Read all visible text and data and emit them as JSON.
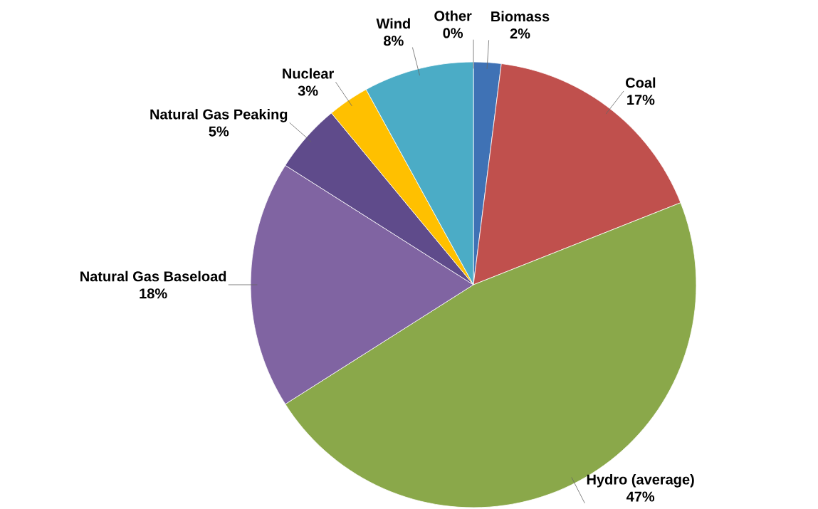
{
  "chart_data": {
    "type": "pie",
    "categories": [
      "Biomass",
      "Coal",
      "Hydro (average)",
      "Natural Gas Baseload",
      "Natural Gas Peaking",
      "Nuclear",
      "Wind",
      "Other"
    ],
    "values": [
      2,
      17,
      47,
      18,
      5,
      3,
      8,
      0
    ],
    "value_labels": [
      "2%",
      "17%",
      "47%",
      "18%",
      "5%",
      "3%",
      "8%",
      "0%"
    ],
    "colors": [
      "#3f72b5",
      "#c0504d",
      "#8aa84a",
      "#8064a2",
      "#5f4b8b",
      "#ffc000",
      "#4bacc6",
      "#a5a5a5"
    ],
    "legend": false
  }
}
